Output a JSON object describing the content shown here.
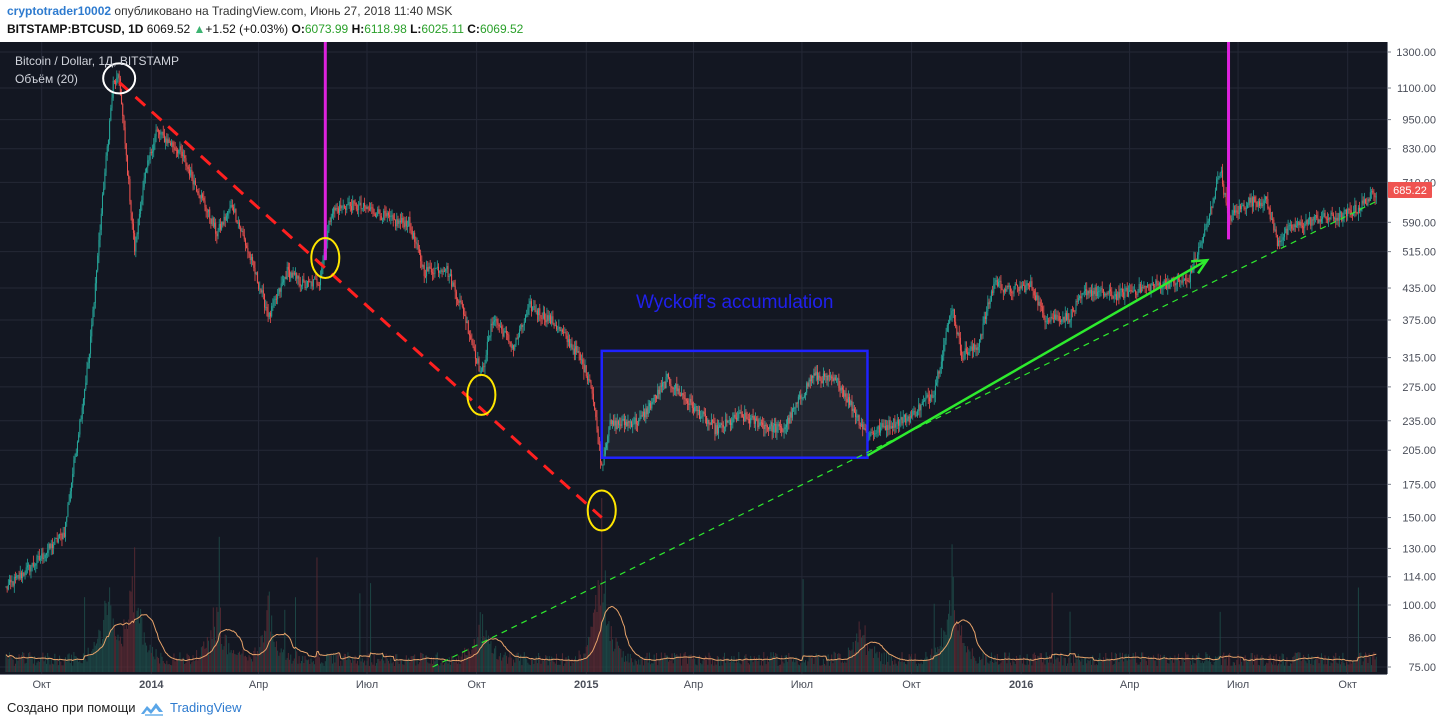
{
  "header": {
    "author": "cryptotrader10002",
    "published_text": "опубликовано на TradingView.com, Июнь 27, 2018 11:40 MSK",
    "symbol": "BITSTAMP:BTCUSD, 1D",
    "last": "6069.52",
    "change": "+1.52 (+0.03%)",
    "o_label": "O:",
    "o_value": "6073.99",
    "h_label": "H:",
    "h_value": "6118.98",
    "l_label": "L:",
    "l_value": "6025.11",
    "c_label": "C:",
    "c_value": "6069.52"
  },
  "footer": {
    "created_with": "Создано при помощи",
    "brand": "TradingView"
  },
  "chart_data": {
    "type": "candlestick",
    "legend_title": "Bitcoin / Dollar, 1Д, BITSTAMP",
    "volume_label": "Объём (20)",
    "annotation": "Wyckoff's accumulation",
    "price_tag": "685.22",
    "y_scale": "log",
    "y_range": [
      75,
      1300
    ],
    "y_ticks": [
      "1300.00",
      "1100.00",
      "950.00",
      "830.00",
      "710.00",
      "590.00",
      "515.00",
      "435.00",
      "375.00",
      "315.00",
      "275.00",
      "235.00",
      "205.00",
      "175.00",
      "150.00",
      "130.00",
      "114.00",
      "100.00",
      "86.00",
      "75.00"
    ],
    "x_ticks": [
      "Окт",
      "2014",
      "Апр",
      "Июл",
      "Окт",
      "2015",
      "Апр",
      "Июл",
      "Окт",
      "2016",
      "Апр",
      "Июл",
      "Окт"
    ],
    "price_path": [
      [
        "2013-09-01",
        108
      ],
      [
        "2013-10-01",
        125
      ],
      [
        "2013-10-20",
        140
      ],
      [
        "2013-11-10",
        320
      ],
      [
        "2013-11-22",
        700
      ],
      [
        "2013-11-30",
        1120
      ],
      [
        "2013-12-05",
        1150
      ],
      [
        "2013-12-18",
        520
      ],
      [
        "2013-12-25",
        700
      ],
      [
        "2014-01-05",
        900
      ],
      [
        "2014-01-25",
        820
      ],
      [
        "2014-02-10",
        680
      ],
      [
        "2014-02-25",
        560
      ],
      [
        "2014-03-10",
        640
      ],
      [
        "2014-03-25",
        500
      ],
      [
        "2014-04-10",
        380
      ],
      [
        "2014-04-25",
        470
      ],
      [
        "2014-05-10",
        440
      ],
      [
        "2014-05-22",
        450
      ],
      [
        "2014-06-01",
        620
      ],
      [
        "2014-06-15",
        640
      ],
      [
        "2014-07-05",
        625
      ],
      [
        "2014-07-25",
        590
      ],
      [
        "2014-08-05",
        590
      ],
      [
        "2014-08-18",
        470
      ],
      [
        "2014-09-05",
        480
      ],
      [
        "2014-09-20",
        390
      ],
      [
        "2014-10-05",
        290
      ],
      [
        "2014-10-15",
        380
      ],
      [
        "2014-11-01",
        330
      ],
      [
        "2014-11-15",
        400
      ],
      [
        "2014-12-05",
        370
      ],
      [
        "2014-12-25",
        320
      ],
      [
        "2015-01-05",
        280
      ],
      [
        "2015-01-14",
        190
      ],
      [
        "2015-01-20",
        230
      ],
      [
        "2015-02-15",
        235
      ],
      [
        "2015-03-10",
        285
      ],
      [
        "2015-04-01",
        250
      ],
      [
        "2015-04-20",
        225
      ],
      [
        "2015-05-10",
        240
      ],
      [
        "2015-06-01",
        230
      ],
      [
        "2015-06-15",
        225
      ],
      [
        "2015-07-10",
        290
      ],
      [
        "2015-08-01",
        280
      ],
      [
        "2015-08-25",
        220
      ],
      [
        "2015-09-10",
        230
      ],
      [
        "2015-10-01",
        240
      ],
      [
        "2015-10-20",
        270
      ],
      [
        "2015-11-04",
        400
      ],
      [
        "2015-11-12",
        320
      ],
      [
        "2015-11-25",
        330
      ],
      [
        "2015-12-10",
        450
      ],
      [
        "2015-12-20",
        430
      ],
      [
        "2016-01-10",
        440
      ],
      [
        "2016-01-20",
        380
      ],
      [
        "2016-02-10",
        380
      ],
      [
        "2016-02-25",
        430
      ],
      [
        "2016-03-20",
        420
      ],
      [
        "2016-04-20",
        440
      ],
      [
        "2016-05-20",
        450
      ],
      [
        "2016-06-05",
        580
      ],
      [
        "2016-06-16",
        760
      ],
      [
        "2016-06-23",
        600
      ],
      [
        "2016-07-10",
        650
      ],
      [
        "2016-07-25",
        650
      ],
      [
        "2016-08-03",
        540
      ],
      [
        "2016-08-15",
        575
      ],
      [
        "2016-09-05",
        600
      ],
      [
        "2016-09-25",
        605
      ],
      [
        "2016-10-10",
        630
      ],
      [
        "2016-10-25",
        680
      ]
    ],
    "drawings": {
      "wyckoff_box": {
        "start": "2015-01-14",
        "end": "2015-08-25",
        "low": 198,
        "high": 325
      },
      "downtrend_dashed": {
        "from": [
          "2013-12-05",
          1130
        ],
        "to": [
          "2015-01-14",
          150
        ]
      },
      "uptrend_arrow": {
        "from": [
          "2015-08-25",
          200
        ],
        "to": [
          "2016-06-05",
          495
        ]
      },
      "support_dashed": {
        "from": [
          "2014-08-25",
          75
        ],
        "to": [
          "2016-10-25",
          650
        ]
      },
      "vertical_markers": [
        {
          "date": "2014-05-27",
          "top": 1300,
          "bottom": 495
        },
        {
          "date": "2016-06-23",
          "top": 1300,
          "bottom": 545
        }
      ],
      "circles": [
        {
          "date": "2013-12-05",
          "price": 1150,
          "color": "#ffffff"
        },
        {
          "date": "2014-05-27",
          "price": 500,
          "color": "#ffe600"
        },
        {
          "date": "2014-10-05",
          "price": 265,
          "color": "#ffe600"
        },
        {
          "date": "2015-01-14",
          "price": 155,
          "color": "#ffe600"
        }
      ]
    },
    "colors": {
      "background": "#131722",
      "bull": "#26a69a",
      "bear": "#ef5350",
      "wyckoff": "#1f22ff",
      "downtrend": "#ff2020",
      "uptrend": "#2eeb2e",
      "marker": "#dd22dd",
      "volume_ma": "#e8a36a",
      "price_tag": "#ef5350"
    }
  }
}
